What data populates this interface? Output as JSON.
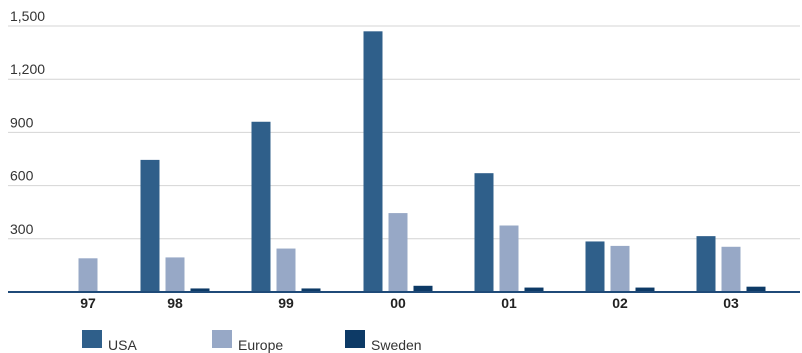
{
  "chart_data": {
    "type": "bar",
    "categories": [
      "97",
      "98",
      "99",
      "00",
      "01",
      "02",
      "03"
    ],
    "series": [
      {
        "name": "USA",
        "color": "#2f5f8a",
        "values": [
          0,
          745,
          960,
          1470,
          670,
          285,
          315
        ]
      },
      {
        "name": "Europe",
        "color": "#97a8c6",
        "values": [
          190,
          195,
          245,
          445,
          375,
          260,
          255
        ]
      },
      {
        "name": "Sweden",
        "color": "#0d3a66",
        "values": [
          0,
          20,
          20,
          35,
          25,
          25,
          30
        ]
      }
    ],
    "yticks": [
      "300",
      "600",
      "900",
      "1,200",
      "1,500"
    ],
    "ylim": [
      0,
      1500
    ],
    "grid": true,
    "legend_position": "bottom-left",
    "title": "",
    "xlabel": "",
    "ylabel": ""
  }
}
